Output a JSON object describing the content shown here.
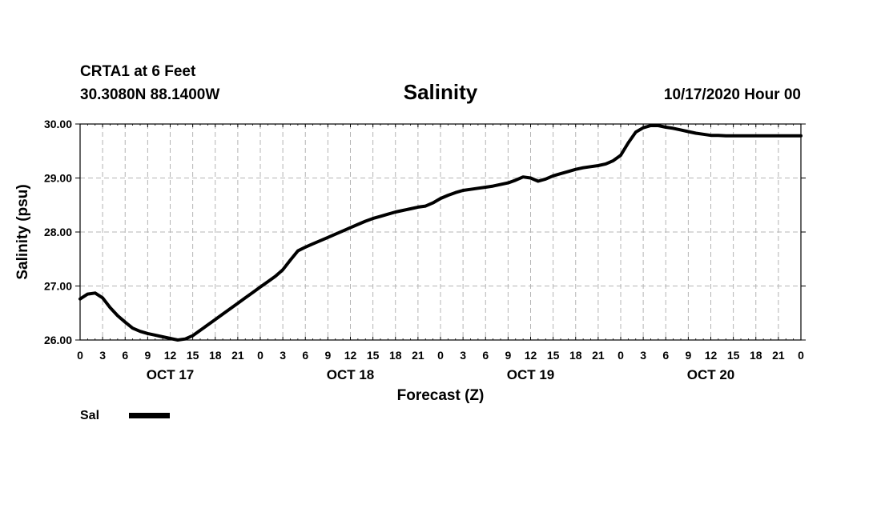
{
  "header": {
    "station": "CRTA1 at 6 Feet",
    "location": "30.3080N 88.1400W",
    "run": "10/17/2020 Hour 00"
  },
  "chart_data": {
    "type": "line",
    "title": "Salinity",
    "xlabel": "Forecast (Z)",
    "ylabel": "Salinity (psu)",
    "ylim": [
      26.0,
      30.0
    ],
    "yticks": [
      "26.00",
      "27.00",
      "28.00",
      "29.00",
      "30.00"
    ],
    "xlim_hours": [
      0,
      96
    ],
    "xtick_labels": [
      "0",
      "3",
      "6",
      "9",
      "12",
      "15",
      "18",
      "21",
      "0",
      "3",
      "6",
      "9",
      "12",
      "15",
      "18",
      "21",
      "0",
      "3",
      "6",
      "9",
      "12",
      "15",
      "18",
      "21",
      "0",
      "3",
      "6",
      "9",
      "12",
      "15",
      "18",
      "21",
      "0"
    ],
    "day_labels": [
      {
        "label": "OCT 17",
        "hour": 12
      },
      {
        "label": "OCT 18",
        "hour": 36
      },
      {
        "label": "OCT 19",
        "hour": 60
      },
      {
        "label": "OCT 20",
        "hour": 84
      }
    ],
    "grid": true,
    "legend": "bottom-left",
    "color": "#000000",
    "series": [
      {
        "name": "Sal",
        "x": [
          0,
          1,
          2,
          3,
          4,
          5,
          6,
          7,
          8,
          9,
          10,
          11,
          12,
          13,
          14,
          15,
          16,
          17,
          18,
          19,
          20,
          21,
          22,
          23,
          24,
          25,
          26,
          27,
          28,
          29,
          30,
          31,
          32,
          33,
          34,
          35,
          36,
          37,
          38,
          39,
          40,
          41,
          42,
          43,
          44,
          45,
          46,
          47,
          48,
          49,
          50,
          51,
          52,
          53,
          54,
          55,
          56,
          57,
          58,
          59,
          60,
          61,
          62,
          63,
          64,
          65,
          66,
          67,
          68,
          69,
          70,
          71,
          72,
          73,
          74,
          75,
          76,
          77,
          78,
          79,
          80,
          81,
          82,
          83,
          84,
          85,
          86,
          87,
          88,
          89,
          90,
          91,
          92,
          93,
          94,
          95,
          96
        ],
        "values": [
          26.76,
          26.85,
          26.87,
          26.78,
          26.6,
          26.45,
          26.33,
          26.22,
          26.16,
          26.12,
          26.09,
          26.06,
          26.03,
          26.0,
          26.02,
          26.08,
          26.18,
          26.28,
          26.38,
          26.48,
          26.58,
          26.68,
          26.78,
          26.88,
          26.98,
          27.08,
          27.18,
          27.3,
          27.48,
          27.65,
          27.72,
          27.78,
          27.84,
          27.9,
          27.96,
          28.02,
          28.08,
          28.14,
          28.2,
          28.25,
          28.29,
          28.33,
          28.37,
          28.4,
          28.43,
          28.46,
          28.48,
          28.54,
          28.62,
          28.68,
          28.73,
          28.77,
          28.79,
          28.81,
          28.83,
          28.85,
          28.88,
          28.91,
          28.96,
          29.02,
          29.0,
          28.94,
          28.98,
          29.04,
          29.08,
          29.12,
          29.16,
          29.19,
          29.21,
          29.23,
          29.26,
          29.32,
          29.42,
          29.65,
          29.85,
          29.93,
          29.97,
          29.97,
          29.94,
          29.92,
          29.89,
          29.86,
          29.83,
          29.81,
          29.79,
          29.79,
          29.78,
          29.78,
          29.78,
          29.78,
          29.78,
          29.78,
          29.78,
          29.78,
          29.78,
          29.78,
          29.78
        ]
      }
    ]
  }
}
